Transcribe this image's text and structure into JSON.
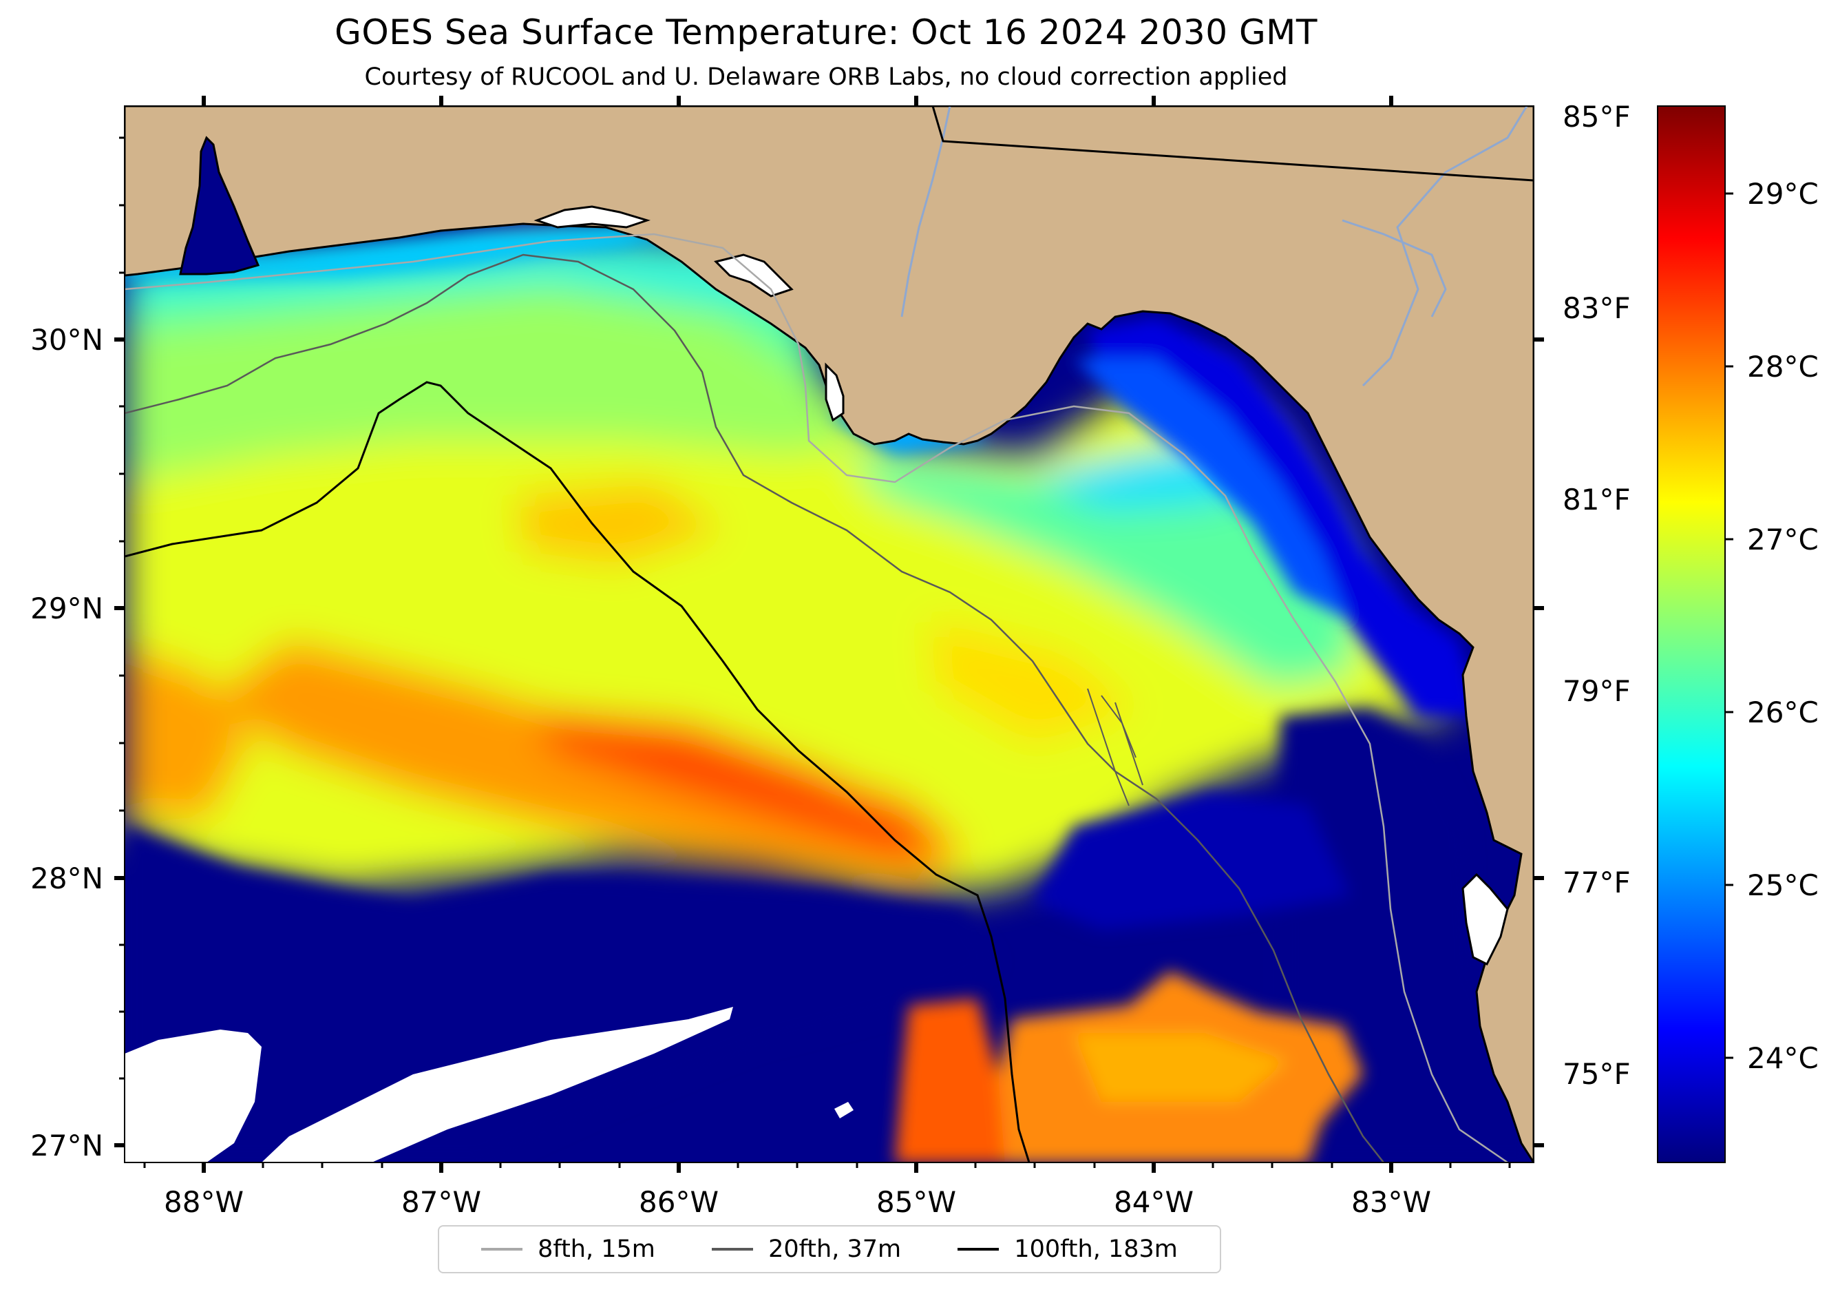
{
  "title": "GOES Sea Surface Temperature: Oct 16 2024 2030 GMT",
  "subtitle": "Courtesy of RUCOOL and U. Delaware ORB Labs, no cloud correction applied",
  "map": {
    "land_color": "#d2b48c",
    "cloud_color": "#ffffff",
    "lon_range": [
      -88.33,
      -82.39
    ],
    "lat_range": [
      26.93,
      30.86
    ],
    "lon_ticks": [
      "88°W",
      "87°W",
      "86°W",
      "85°W",
      "84°W",
      "83°W"
    ],
    "lat_ticks": [
      "27°N",
      "28°N",
      "29°N",
      "30°N"
    ]
  },
  "colorbar": {
    "colormap": "jet",
    "fahrenheit_ticks": [
      "75°F",
      "77°F",
      "79°F",
      "81°F",
      "83°F",
      "85°F"
    ],
    "celsius_ticks": [
      "24°C",
      "25°C",
      "26°C",
      "27°C",
      "28°C",
      "29°C"
    ]
  },
  "legend": [
    {
      "label": "8fth, 15m",
      "color": "#a9a9a9"
    },
    {
      "label": "20fth, 37m",
      "color": "#595959"
    },
    {
      "label": "100fth, 183m",
      "color": "#000000"
    }
  ]
}
